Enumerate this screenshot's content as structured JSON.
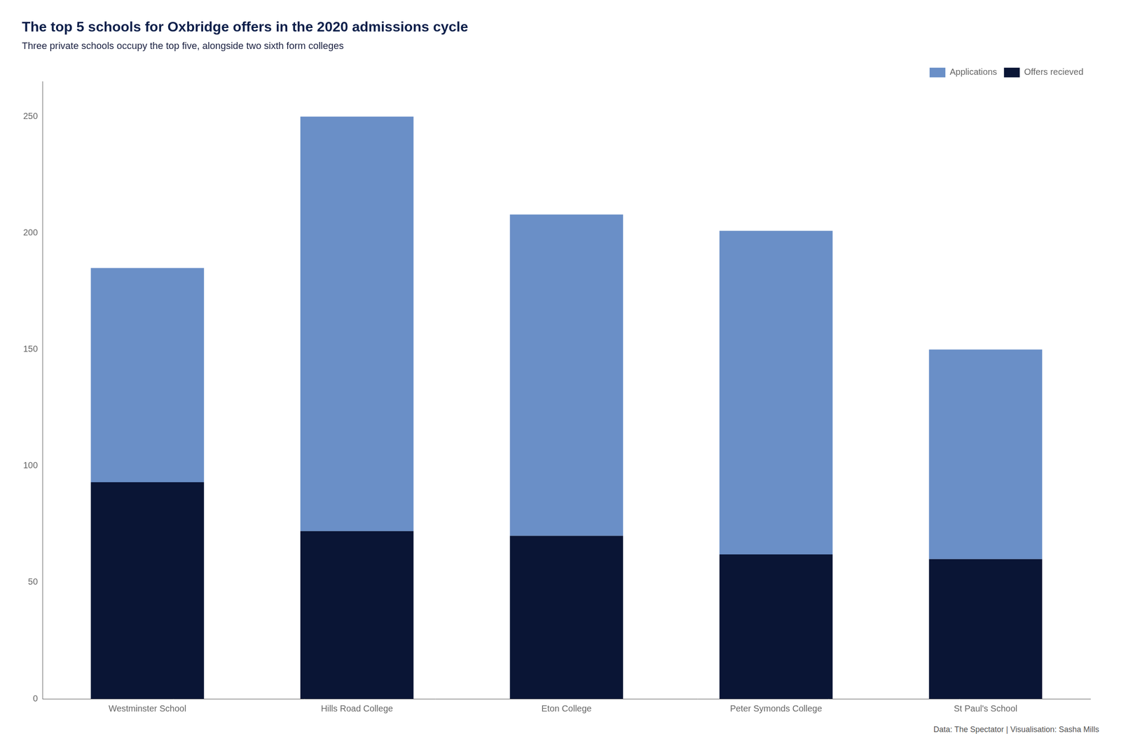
{
  "chart_data": {
    "type": "bar",
    "title": "The top 5 schools for Oxbridge offers in the 2020 admissions cycle",
    "subtitle": "Three private schools occupy the top five, alongside two sixth form colleges",
    "caption": "Data: The Spectator | Visualisation: Sasha Mills",
    "categories": [
      "Westminster School",
      "Hills Road College",
      "Eton College",
      "Peter Symonds College",
      "St Paul's School"
    ],
    "series": [
      {
        "name": "Offers recieved",
        "color": "#0a1535",
        "values": [
          93,
          72,
          70,
          62,
          60
        ]
      },
      {
        "name": "Applications",
        "color": "#6a8fc7",
        "values": [
          92,
          178,
          138,
          139,
          90
        ]
      }
    ],
    "stacked": true,
    "ylim": [
      0,
      265
    ],
    "yticks": [
      0,
      50,
      100,
      150,
      200,
      250
    ],
    "grid": false,
    "legend": "upper right"
  }
}
